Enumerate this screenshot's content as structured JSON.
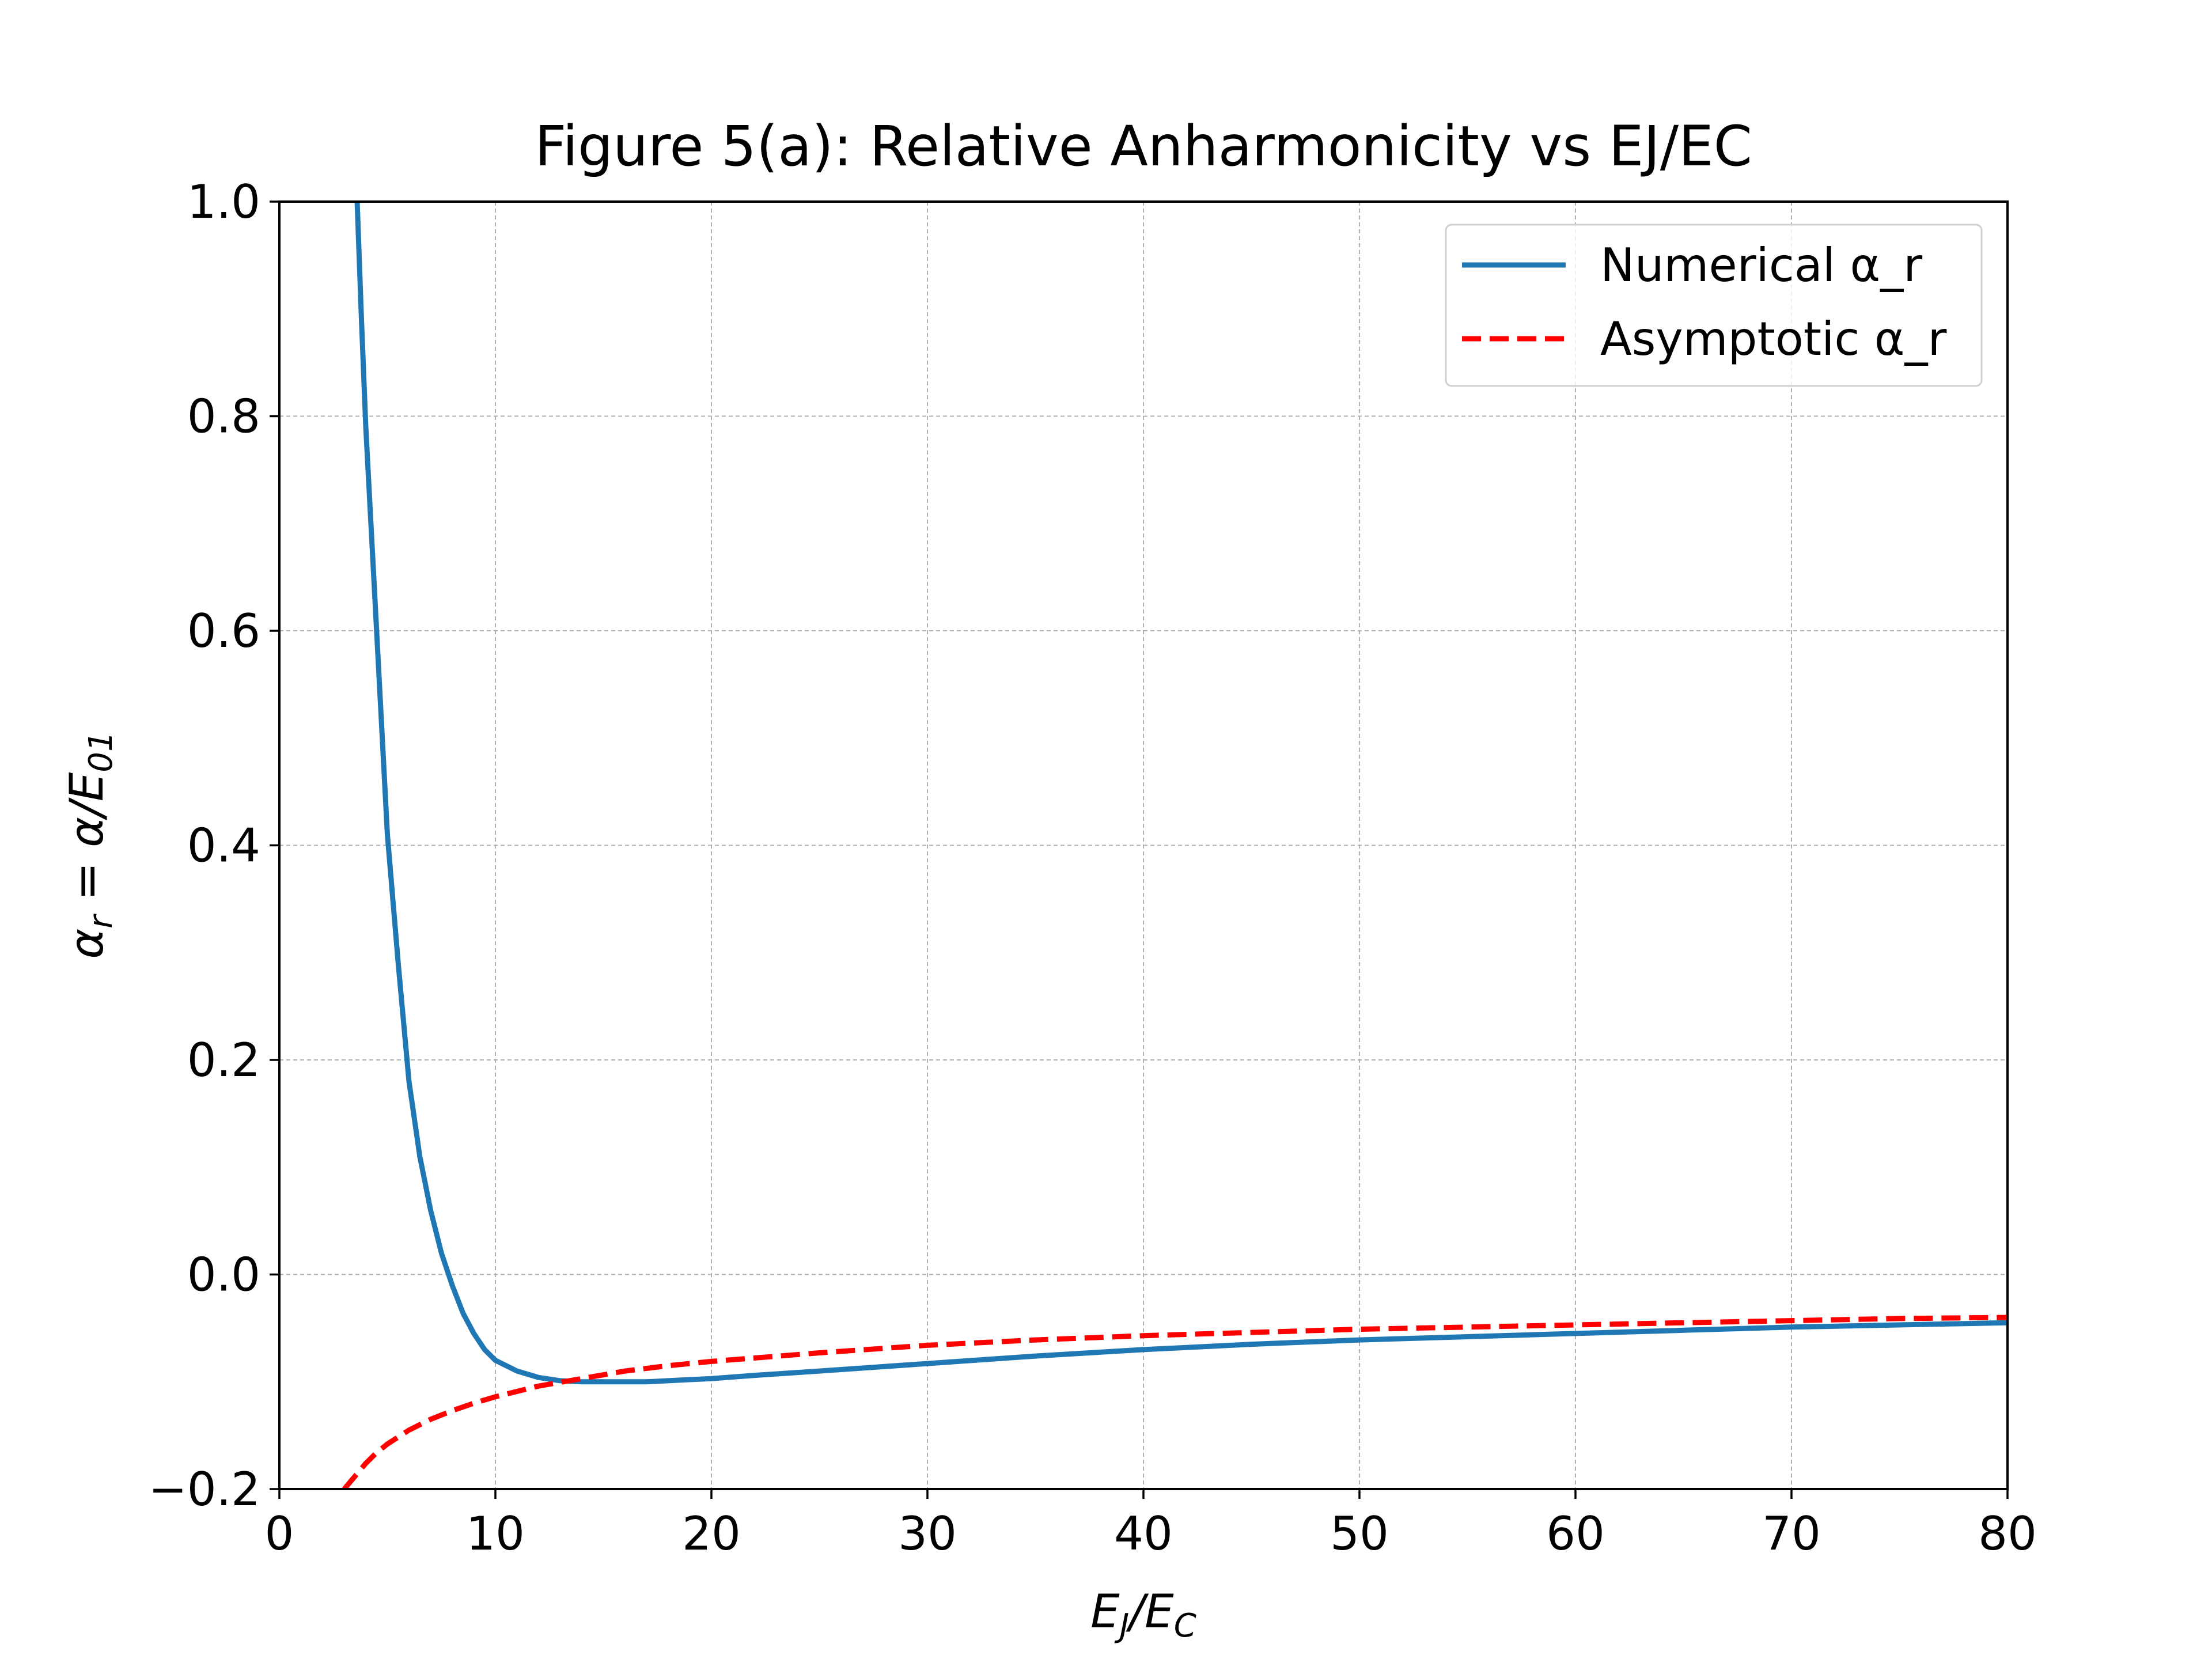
{
  "chart_data": {
    "type": "line",
    "title": "Figure 5(a): Relative Anharmonicity vs EJ/EC",
    "xlabel": {
      "main": "E",
      "sub1": "J",
      "mid": "/E",
      "sub2": "C"
    },
    "ylabel": {
      "pre": "α",
      "sub1": "r",
      "mid": " = α/E",
      "sub2": "01"
    },
    "xlim": [
      0,
      80
    ],
    "ylim": [
      -0.2,
      1.0
    ],
    "x_ticks": [
      0,
      10,
      20,
      30,
      40,
      50,
      60,
      70,
      80
    ],
    "x_tick_labels": [
      "0",
      "10",
      "20",
      "30",
      "40",
      "50",
      "60",
      "70",
      "80"
    ],
    "y_ticks": [
      -0.2,
      0.0,
      0.2,
      0.4,
      0.6,
      0.8,
      1.0
    ],
    "y_tick_labels": [
      "−0.2",
      "0.0",
      "0.2",
      "0.4",
      "0.6",
      "0.8",
      "1.0"
    ],
    "grid": true,
    "legend_position": "top-right",
    "series": [
      {
        "name": "Numerical α_r",
        "color": "#1f77b4",
        "style": "solid",
        "x": [
          3.6,
          3.8,
          4.0,
          4.5,
          5.0,
          5.5,
          6.0,
          6.5,
          7.0,
          7.5,
          8.0,
          8.5,
          9.0,
          9.5,
          10.0,
          11.0,
          12.0,
          13.0,
          14.0,
          15.0,
          16.0,
          17.0,
          18.0,
          19.0,
          20.0,
          22.0,
          25.0,
          30.0,
          35.0,
          40.0,
          45.0,
          50.0,
          55.0,
          60.0,
          65.0,
          70.0,
          75.0,
          80.0
        ],
        "y": [
          1.0,
          0.89,
          0.79,
          0.6,
          0.41,
          0.29,
          0.18,
          0.11,
          0.06,
          0.02,
          -0.01,
          -0.036,
          -0.055,
          -0.07,
          -0.08,
          -0.09,
          -0.096,
          -0.099,
          -0.1,
          -0.1,
          -0.1,
          -0.1,
          -0.099,
          -0.098,
          -0.097,
          -0.094,
          -0.09,
          -0.083,
          -0.076,
          -0.07,
          -0.065,
          -0.061,
          -0.058,
          -0.055,
          -0.052,
          -0.049,
          -0.047,
          -0.045
        ]
      },
      {
        "name": "Asymptotic α_r",
        "color": "#ff0000",
        "style": "dashed",
        "x": [
          3.0,
          3.5,
          4.0,
          4.5,
          5.0,
          6.0,
          7.0,
          8.0,
          9.0,
          10.0,
          12.0,
          14.0,
          16.0,
          18.0,
          20.0,
          25.0,
          30.0,
          35.0,
          40.0,
          45.0,
          50.0,
          55.0,
          60.0,
          65.0,
          70.0,
          75.0,
          80.0
        ],
        "y": [
          -0.2,
          -0.188,
          -0.176,
          -0.166,
          -0.158,
          -0.145,
          -0.135,
          -0.127,
          -0.12,
          -0.114,
          -0.104,
          -0.097,
          -0.09,
          -0.085,
          -0.081,
          -0.073,
          -0.066,
          -0.061,
          -0.057,
          -0.054,
          -0.051,
          -0.049,
          -0.047,
          -0.045,
          -0.043,
          -0.041,
          -0.04
        ]
      }
    ]
  }
}
